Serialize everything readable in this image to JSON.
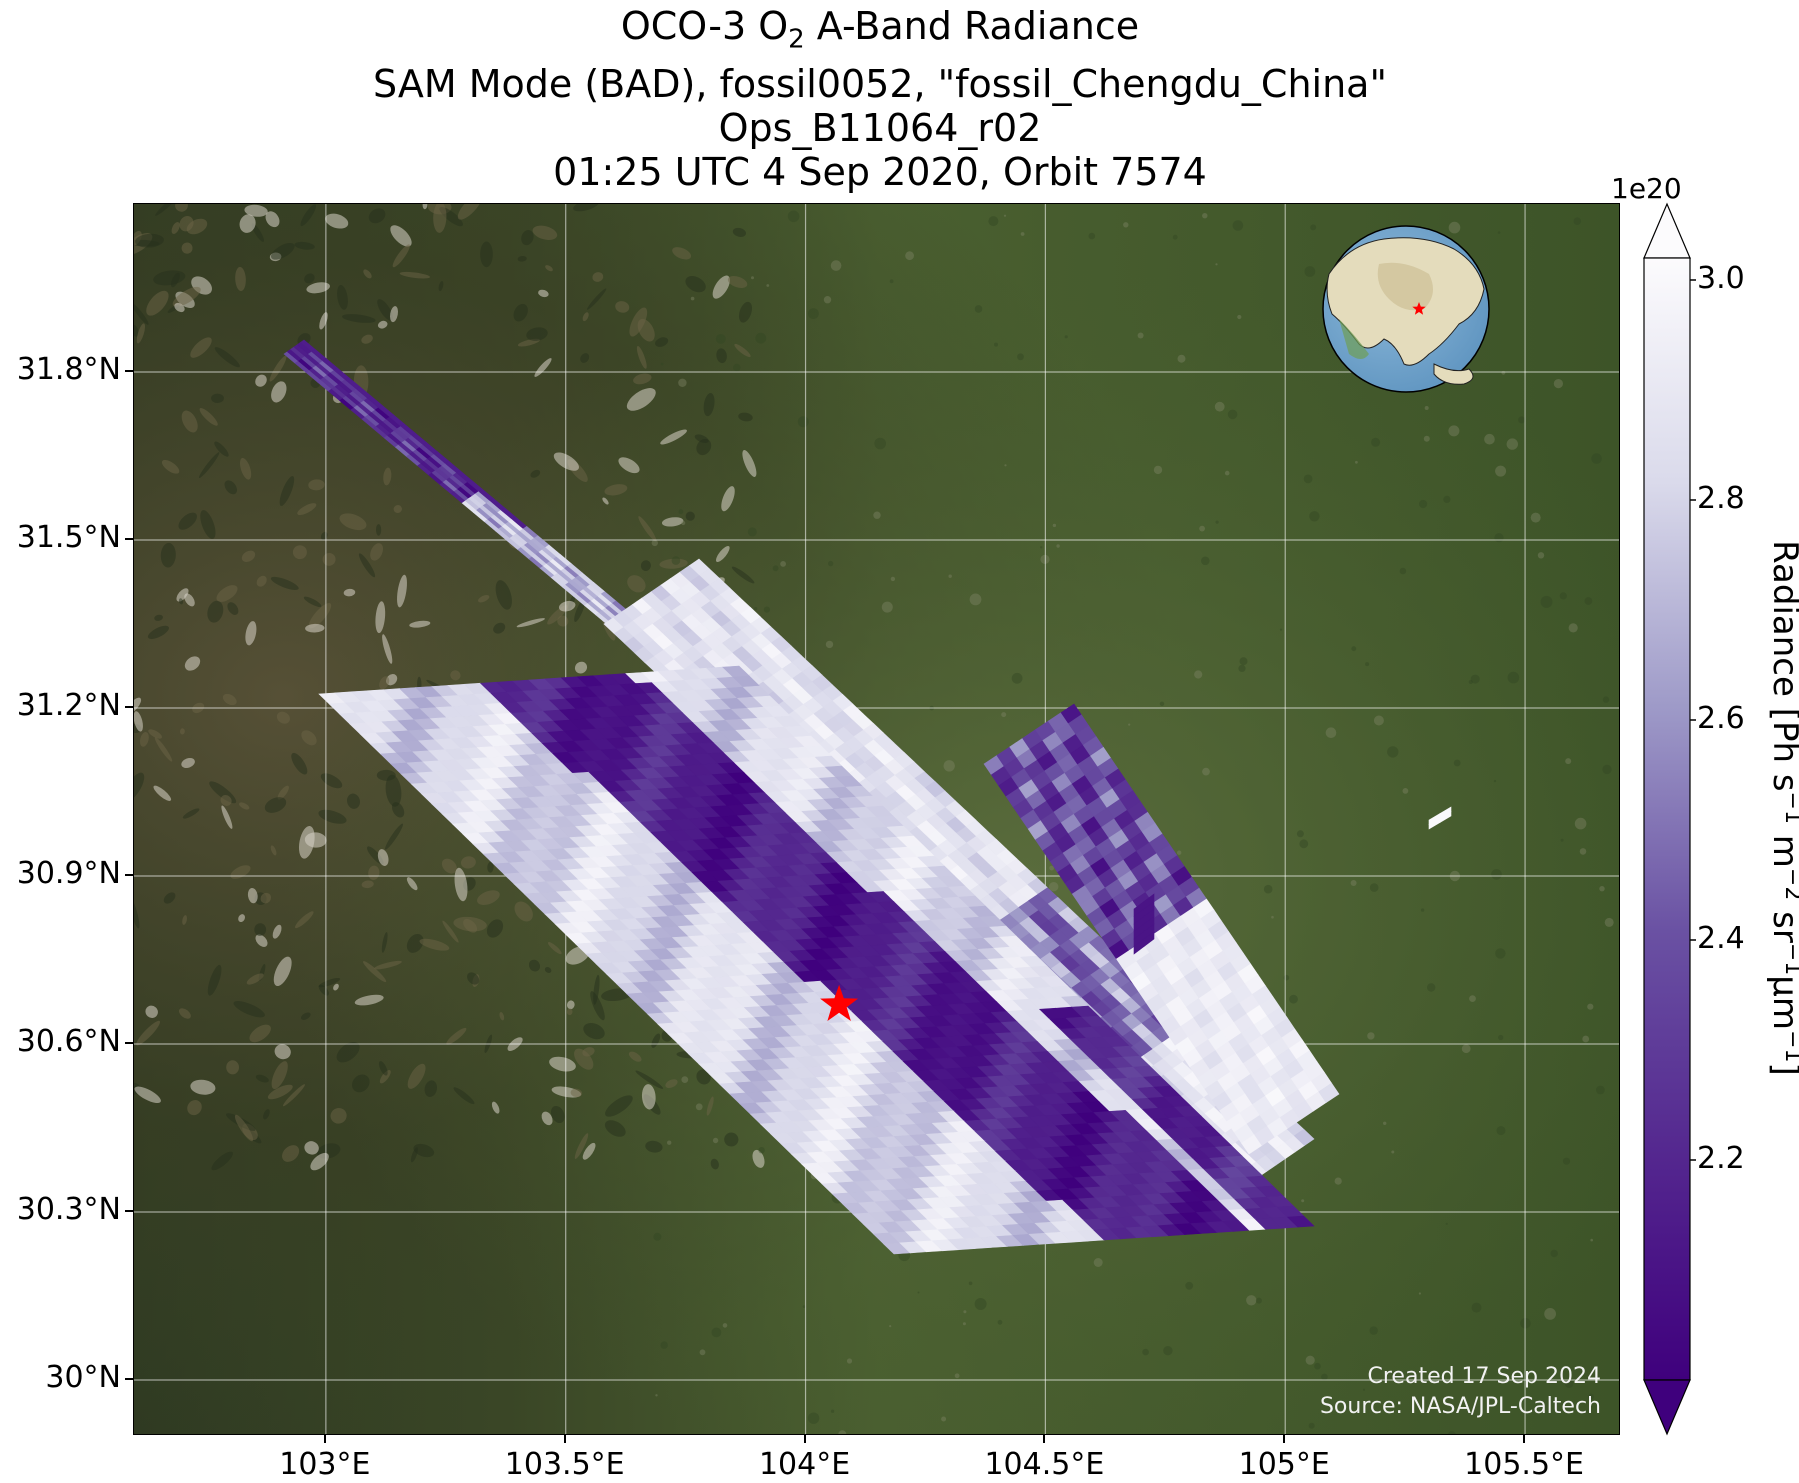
{
  "title": {
    "line1_prefix": "OCO-3 O",
    "line1_sub": "2",
    "line1_suffix": " A-Band Radiance",
    "line2": "SAM Mode (BAD), fossil0052, \"fossil_Chengdu_China\"",
    "line3": "Ops_B11064_r02",
    "line4": "01:25 UTC 4 Sep 2020, Orbit 7574"
  },
  "map": {
    "lon_range": [
      102.6,
      105.7
    ],
    "lat_range": [
      29.9,
      32.1
    ],
    "x_ticks": [
      {
        "value": 103.0,
        "label": "103°E"
      },
      {
        "value": 103.5,
        "label": "103.5°E"
      },
      {
        "value": 104.0,
        "label": "104°E"
      },
      {
        "value": 104.5,
        "label": "104.5°E"
      },
      {
        "value": 105.0,
        "label": "105°E"
      },
      {
        "value": 105.5,
        "label": "105.5°E"
      }
    ],
    "y_ticks": [
      {
        "value": 30.0,
        "label": "30°N"
      },
      {
        "value": 30.3,
        "label": "30.3°N"
      },
      {
        "value": 30.6,
        "label": "30.6°N"
      },
      {
        "value": 30.9,
        "label": "30.9°N"
      },
      {
        "value": 31.2,
        "label": "31.2°N"
      },
      {
        "value": 31.5,
        "label": "31.5°N"
      },
      {
        "value": 31.8,
        "label": "31.8°N"
      }
    ],
    "grid": true,
    "target": {
      "lon": 104.07,
      "lat": 30.67,
      "color": "#ff0000"
    },
    "background": "satellite imagery",
    "credit_line1": "Created 17 Sep 2024",
    "credit_line2": "Source: NASA/JPL-Caltech"
  },
  "colorbar": {
    "colormap": "purples",
    "range": [
      2.0,
      3.02
    ],
    "exponent_label": "1e20",
    "ticks": [
      {
        "value": 2.2,
        "label": "2.2"
      },
      {
        "value": 2.4,
        "label": "2.4"
      },
      {
        "value": 2.6,
        "label": "2.6"
      },
      {
        "value": 2.8,
        "label": "2.8"
      },
      {
        "value": 3.0,
        "label": "3.0"
      }
    ],
    "title_main": "Radiance [Ph s",
    "title_sup1": "−1",
    "title_m": " m",
    "title_sup2": "−2",
    "title_sr": " sr",
    "title_sup3": "−1",
    "title_um": "μm",
    "title_sup4": "−1",
    "title_end": "]",
    "low_color": "#3f007d",
    "high_color": "#fcfbfd"
  },
  "inset_globe": {
    "ocean_color": "#6fa3cc",
    "land_color": "#e4dcbc",
    "marker_color": "#ff0000"
  }
}
